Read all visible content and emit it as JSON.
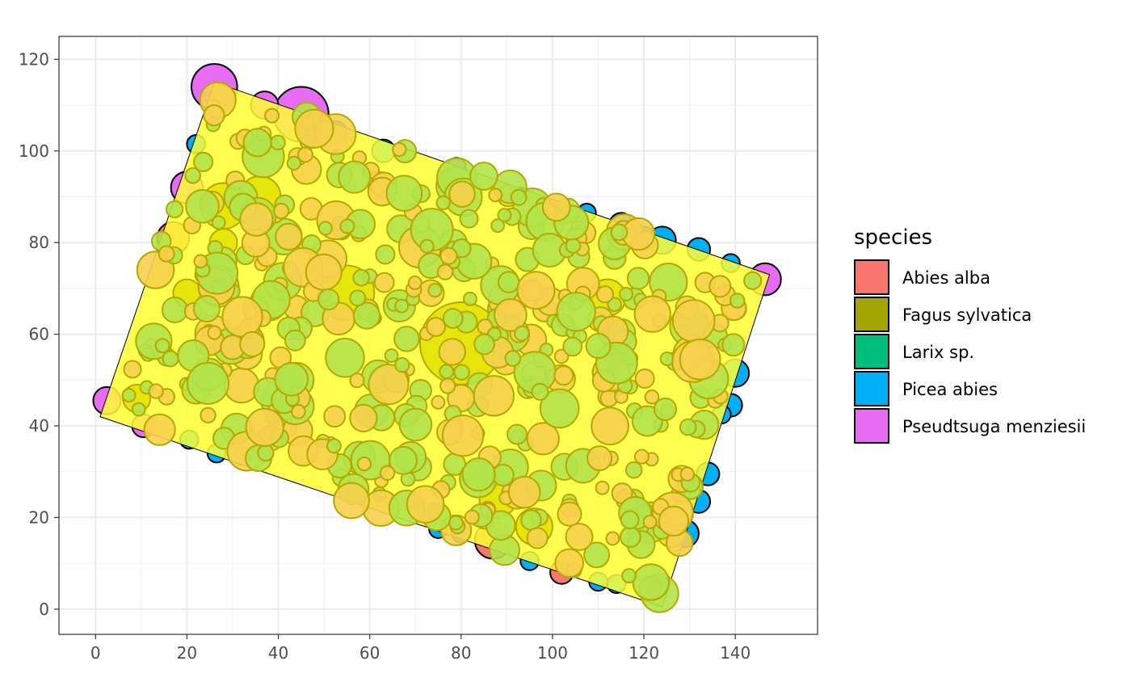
{
  "chart_data": {
    "type": "scatter",
    "title": "",
    "xlabel": "",
    "ylabel": "",
    "xlim": [
      -8,
      158
    ],
    "ylim": [
      -5.5,
      125
    ],
    "x_ticks": [
      0,
      20,
      40,
      60,
      80,
      100,
      120,
      140
    ],
    "y_ticks": [
      0,
      20,
      40,
      60,
      80,
      100,
      120
    ],
    "grid": true,
    "legend_position": "right",
    "legend_title": "species",
    "species": [
      {
        "name": "Abies alba",
        "color": "#F8766D"
      },
      {
        "name": "Fagus sylvatica",
        "color": "#A3A500"
      },
      {
        "name": "Larix sp.",
        "color": "#00BF7D"
      },
      {
        "name": "Picea abies",
        "color": "#00B0F6"
      },
      {
        "name": "Pseudtsuga menziesii",
        "color": "#E76BF3"
      }
    ],
    "plot_polygon": {
      "x": [
        26,
        147.5,
        124,
        1
      ],
      "y": [
        115,
        73,
        0.5,
        42
      ],
      "fill": "#FFFF33",
      "opacity": 0.85
    },
    "trees_outside": [
      {
        "x": 26,
        "y": 114,
        "r": 5,
        "species": "Pseudtsuga menziesii"
      },
      {
        "x": 45,
        "y": 108,
        "r": 6,
        "species": "Pseudtsuga menziesii"
      },
      {
        "x": 37,
        "y": 110,
        "r": 3,
        "species": "Pseudtsuga menziesii"
      },
      {
        "x": 20,
        "y": 92,
        "r": 3.5,
        "species": "Pseudtsuga menziesii"
      },
      {
        "x": 17,
        "y": 81,
        "r": 3.5,
        "species": "Abies alba"
      },
      {
        "x": 2.5,
        "y": 45.5,
        "r": 3,
        "species": "Pseudtsuga menziesii"
      },
      {
        "x": 10.5,
        "y": 40,
        "r": 2.5,
        "species": "Pseudtsuga menziesii"
      },
      {
        "x": 146.5,
        "y": 72,
        "r": 3.5,
        "species": "Pseudtsuga menziesii"
      },
      {
        "x": 79,
        "y": 96.5,
        "r": 2,
        "species": "Pseudtsuga menziesii"
      },
      {
        "x": 87,
        "y": 15,
        "r": 4,
        "species": "Abies alba"
      },
      {
        "x": 102,
        "y": 8,
        "r": 2.5,
        "species": "Abies alba"
      },
      {
        "x": 52.5,
        "y": 104,
        "r": 2.5,
        "species": "Picea abies"
      },
      {
        "x": 63,
        "y": 100,
        "r": 2.5,
        "species": "Picea abies"
      },
      {
        "x": 93,
        "y": 90,
        "r": 2,
        "species": "Picea abies"
      },
      {
        "x": 101,
        "y": 87,
        "r": 2,
        "species": "Picea abies"
      },
      {
        "x": 107.5,
        "y": 86.5,
        "r": 2,
        "species": "Picea abies"
      },
      {
        "x": 115,
        "y": 84,
        "r": 2.5,
        "species": "Picea abies"
      },
      {
        "x": 120,
        "y": 81,
        "r": 2.5,
        "species": "Picea abies"
      },
      {
        "x": 124,
        "y": 80.5,
        "r": 3,
        "species": "Picea abies"
      },
      {
        "x": 132,
        "y": 78.5,
        "r": 2.5,
        "species": "Picea abies"
      },
      {
        "x": 139,
        "y": 75.5,
        "r": 2,
        "species": "Picea abies"
      },
      {
        "x": 140,
        "y": 51.5,
        "r": 3,
        "species": "Picea abies"
      },
      {
        "x": 139,
        "y": 44.5,
        "r": 2.5,
        "species": "Picea abies"
      },
      {
        "x": 137,
        "y": 42.5,
        "r": 2,
        "species": "Picea abies"
      },
      {
        "x": 134,
        "y": 29.5,
        "r": 2.5,
        "species": "Picea abies"
      },
      {
        "x": 132,
        "y": 23.5,
        "r": 2.5,
        "species": "Picea abies"
      },
      {
        "x": 129,
        "y": 16.5,
        "r": 3,
        "species": "Picea abies"
      },
      {
        "x": 114,
        "y": 5.5,
        "r": 2,
        "species": "Picea abies"
      },
      {
        "x": 110,
        "y": 6,
        "r": 2,
        "species": "Picea abies"
      },
      {
        "x": 95,
        "y": 10.5,
        "r": 2,
        "species": "Picea abies"
      },
      {
        "x": 80,
        "y": 16.5,
        "r": 2,
        "species": "Picea abies"
      },
      {
        "x": 75,
        "y": 17.5,
        "r": 2,
        "species": "Picea abies"
      },
      {
        "x": 32,
        "y": 33.5,
        "r": 2,
        "species": "Picea abies"
      },
      {
        "x": 26.5,
        "y": 34,
        "r": 2,
        "species": "Picea abies"
      },
      {
        "x": 20.5,
        "y": 37,
        "r": 2,
        "species": "Picea abies"
      },
      {
        "x": 22,
        "y": 101.5,
        "r": 2,
        "species": "Picea abies"
      }
    ],
    "trees_inside": [
      {
        "x": 80,
        "y": 58,
        "r": 9,
        "species": "Fagus sylvatica"
      },
      {
        "x": 28,
        "y": 88,
        "r": 5,
        "species": "Fagus sylvatica"
      },
      {
        "x": 55,
        "y": 69,
        "r": 6,
        "species": "Fagus sylvatica"
      },
      {
        "x": 38,
        "y": 67,
        "r": 4,
        "species": "Fagus sylvatica"
      },
      {
        "x": 88,
        "y": 24,
        "r": 4,
        "species": "Fagus sylvatica"
      },
      {
        "x": 96,
        "y": 18,
        "r": 4,
        "species": "Fagus sylvatica"
      },
      {
        "x": 36,
        "y": 90,
        "r": 4.5,
        "species": "Fagus sylvatica"
      },
      {
        "x": 20,
        "y": 69,
        "r": 3,
        "species": "Fagus sylvatica"
      },
      {
        "x": 9,
        "y": 46,
        "r": 3,
        "species": "Fagus sylvatica"
      },
      {
        "x": 112,
        "y": 68,
        "r": 4,
        "species": "Fagus sylvatica"
      },
      {
        "x": 28,
        "y": 80,
        "r": 3,
        "species": "Fagus sylvatica"
      }
    ],
    "inside_colors": {
      "fill_a": "#B3E34A",
      "fill_b": "#F6D04D",
      "stroke": "#B5A800"
    }
  }
}
